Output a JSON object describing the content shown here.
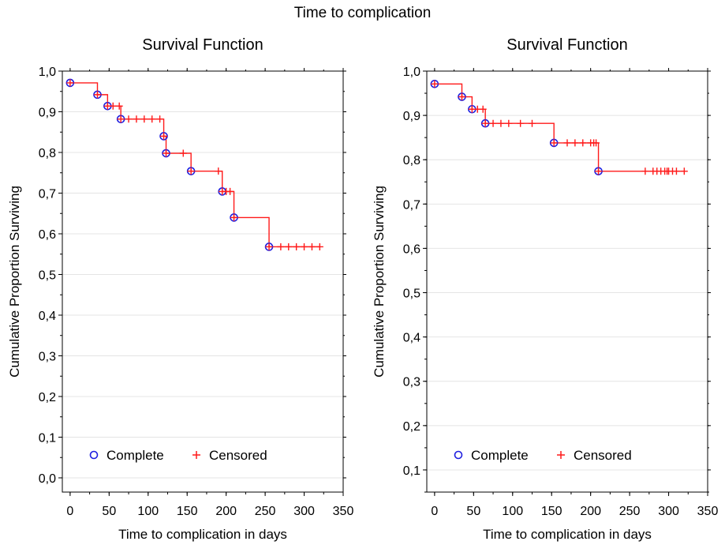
{
  "figure": {
    "title": "Time to complication"
  },
  "colors": {
    "complete": "#1f1fe0",
    "censored": "#ff1a1a",
    "step": "#ff1a1a",
    "grid": "#e4e4e4",
    "axis": "#000000"
  },
  "chart_data": [
    {
      "type": "line",
      "title": "Survival Function",
      "xlabel": "Time to complication in days",
      "ylabel": "Cumulative Proportion Surviving",
      "xlim": [
        -10,
        350
      ],
      "ylim": [
        -0.035,
        1.0
      ],
      "xticks": [
        0,
        50,
        100,
        150,
        200,
        250,
        300,
        350
      ],
      "xtick_labels": [
        "0",
        "50",
        "100",
        "150",
        "200",
        "250",
        "300",
        "350"
      ],
      "yticks": [
        0.0,
        0.1,
        0.2,
        0.3,
        0.4,
        0.5,
        0.6,
        0.7,
        0.8,
        0.9,
        1.0
      ],
      "ytick_labels": [
        "0,0",
        "0,1",
        "0,2",
        "0,3",
        "0,4",
        "0,5",
        "0,6",
        "0,7",
        "0,8",
        "0,9",
        "1,0"
      ],
      "grid": "horizontal",
      "legend": {
        "position": "bottom-left",
        "entries": [
          "Complete",
          "Censored"
        ]
      },
      "series": [
        {
          "name": "Complete",
          "x": [
            0,
            35,
            48,
            65,
            120,
            123,
            155,
            195,
            210,
            255
          ],
          "y": [
            0.971,
            0.942,
            0.914,
            0.882,
            0.84,
            0.798,
            0.754,
            0.704,
            0.64,
            0.568
          ]
        },
        {
          "name": "Censored",
          "x": [
            0,
            35,
            48,
            55,
            63,
            65,
            75,
            85,
            95,
            105,
            115,
            120,
            123,
            145,
            155,
            190,
            195,
            200,
            205,
            210,
            255,
            270,
            280,
            290,
            300,
            310,
            320
          ],
          "y": [
            0.971,
            0.942,
            0.914,
            0.914,
            0.914,
            0.882,
            0.882,
            0.882,
            0.882,
            0.882,
            0.882,
            0.84,
            0.798,
            0.798,
            0.754,
            0.754,
            0.704,
            0.704,
            0.704,
            0.64,
            0.568,
            0.568,
            0.568,
            0.568,
            0.568,
            0.568,
            0.568
          ]
        }
      ]
    },
    {
      "type": "line",
      "title": "Survival Function",
      "xlabel": "Time to complication in days",
      "ylabel": "Cumulative Proportion Surviving",
      "xlim": [
        -10,
        350
      ],
      "ylim": [
        0.05,
        1.0
      ],
      "xticks": [
        0,
        50,
        100,
        150,
        200,
        250,
        300,
        350
      ],
      "xtick_labels": [
        "0",
        "50",
        "100",
        "150",
        "200",
        "250",
        "300",
        "350"
      ],
      "yticks": [
        0.1,
        0.2,
        0.3,
        0.4,
        0.5,
        0.6,
        0.7,
        0.8,
        0.9,
        1.0
      ],
      "ytick_labels": [
        "0,1",
        "0,2",
        "0,3",
        "0,4",
        "0,5",
        "0,6",
        "0,7",
        "0,8",
        "0,9",
        "1,0"
      ],
      "grid": "horizontal",
      "legend": {
        "position": "bottom-left",
        "entries": [
          "Complete",
          "Censored"
        ]
      },
      "series": [
        {
          "name": "Complete",
          "x": [
            0,
            35,
            48,
            65,
            153,
            210
          ],
          "y": [
            0.971,
            0.942,
            0.914,
            0.882,
            0.838,
            0.774
          ]
        },
        {
          "name": "Censored",
          "x": [
            0,
            35,
            48,
            55,
            62,
            65,
            75,
            85,
            95,
            110,
            125,
            153,
            170,
            180,
            190,
            200,
            204,
            207,
            210,
            270,
            280,
            285,
            290,
            295,
            298,
            300,
            305,
            310,
            320
          ],
          "y": [
            0.971,
            0.942,
            0.914,
            0.914,
            0.914,
            0.882,
            0.882,
            0.882,
            0.882,
            0.882,
            0.882,
            0.838,
            0.838,
            0.838,
            0.838,
            0.838,
            0.838,
            0.838,
            0.774,
            0.774,
            0.774,
            0.774,
            0.774,
            0.774,
            0.774,
            0.774,
            0.774,
            0.774,
            0.774
          ]
        }
      ]
    }
  ]
}
